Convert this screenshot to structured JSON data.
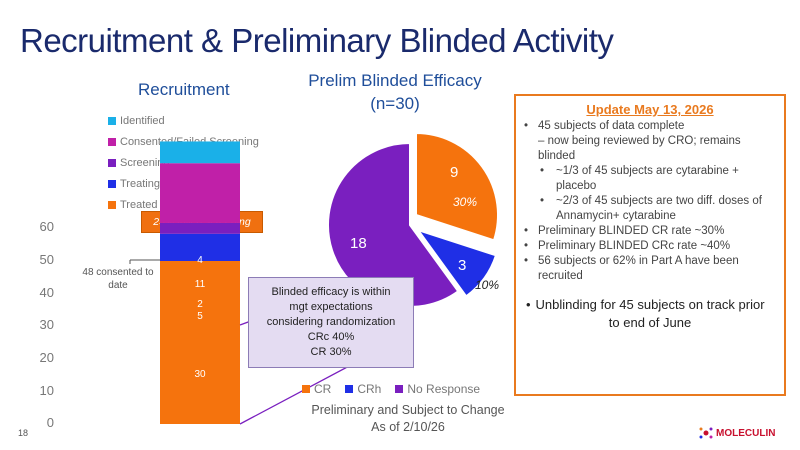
{
  "title": "Recruitment & Preliminary Blinded Activity",
  "recruitment": {
    "title": "Recruitment",
    "legend": [
      {
        "label": "Identified",
        "color": "#1ab0e8"
      },
      {
        "label": "Consented/Failed Screening",
        "color": "#c020a8"
      },
      {
        "label": "Screening",
        "color": "#7a1fbf"
      },
      {
        "label": "Treating/ed No Data",
        "color": "#1f2fe6"
      },
      {
        "label": "Treated Prelim Results",
        "color": "#f5730d"
      }
    ],
    "failed_note": "23% failed screening",
    "consented_note": "48 consented to date"
  },
  "pie": {
    "title_line1": "Prelim Blinded Efficacy",
    "title_line2": "(n=30)",
    "callout": [
      "Blinded efficacy is within",
      "mgt expectations",
      "considering randomization",
      "CRc 40%",
      "CR 30%"
    ],
    "legend": [
      {
        "label": "CR",
        "color": "#f5730d"
      },
      {
        "label": "CRh",
        "color": "#1f2fe6"
      },
      {
        "label": "No Response",
        "color": "#7a1fbf"
      }
    ],
    "labels": {
      "cr_value": "9",
      "cr_pct": "30%",
      "crh_value": "3",
      "crh_pct": "10%",
      "nr_value": "18"
    },
    "subtitle_line1": "Preliminary and Subject to Change",
    "subtitle_line2": "As of 2/10/26"
  },
  "update": {
    "title": "Update May 13, 2026",
    "bullet1": "45 subjects of data complete",
    "bullet1_cont": "– now being reviewed by CRO; remains blinded",
    "sub1": "~1/3 of 45 subjects are cytarabine + placebo",
    "sub2": "~2/3 of 45 subjects are two diff. doses of Annamycin+ cytarabine",
    "bullet2": "Preliminary BLINDED CR rate ~30%",
    "bullet3": "Preliminary BLINDED CRc rate ~40%",
    "bullet4": "56 subjects or 62% in Part A have been recruited",
    "bullet5": "Unblinding for 45 subjects on track prior to end of June"
  },
  "page_number": "18",
  "logo_text": "MOLECULIN",
  "chart_data": [
    {
      "type": "bar",
      "title": "Recruitment",
      "categories": [
        ""
      ],
      "stacked": true,
      "series": [
        {
          "name": "Treated Prelim Results",
          "values": [
            30
          ]
        },
        {
          "name": "Treating/ed No Data",
          "values": [
            5
          ]
        },
        {
          "name": "Screening",
          "values": [
            2
          ]
        },
        {
          "name": "Consented/Failed Screening",
          "values": [
            11
          ]
        },
        {
          "name": "Identified",
          "values": [
            4
          ]
        }
      ],
      "yticks": [
        "0",
        "10",
        "20",
        "30",
        "40",
        "50",
        "60"
      ],
      "ylim": [
        0,
        60
      ],
      "legend": "top"
    },
    {
      "type": "pie",
      "title": "Prelim Blinded Efficacy (n=30)",
      "categories": [
        "CR",
        "CRh",
        "No Response"
      ],
      "values": [
        9,
        3,
        18
      ],
      "legend": "bottom"
    }
  ]
}
